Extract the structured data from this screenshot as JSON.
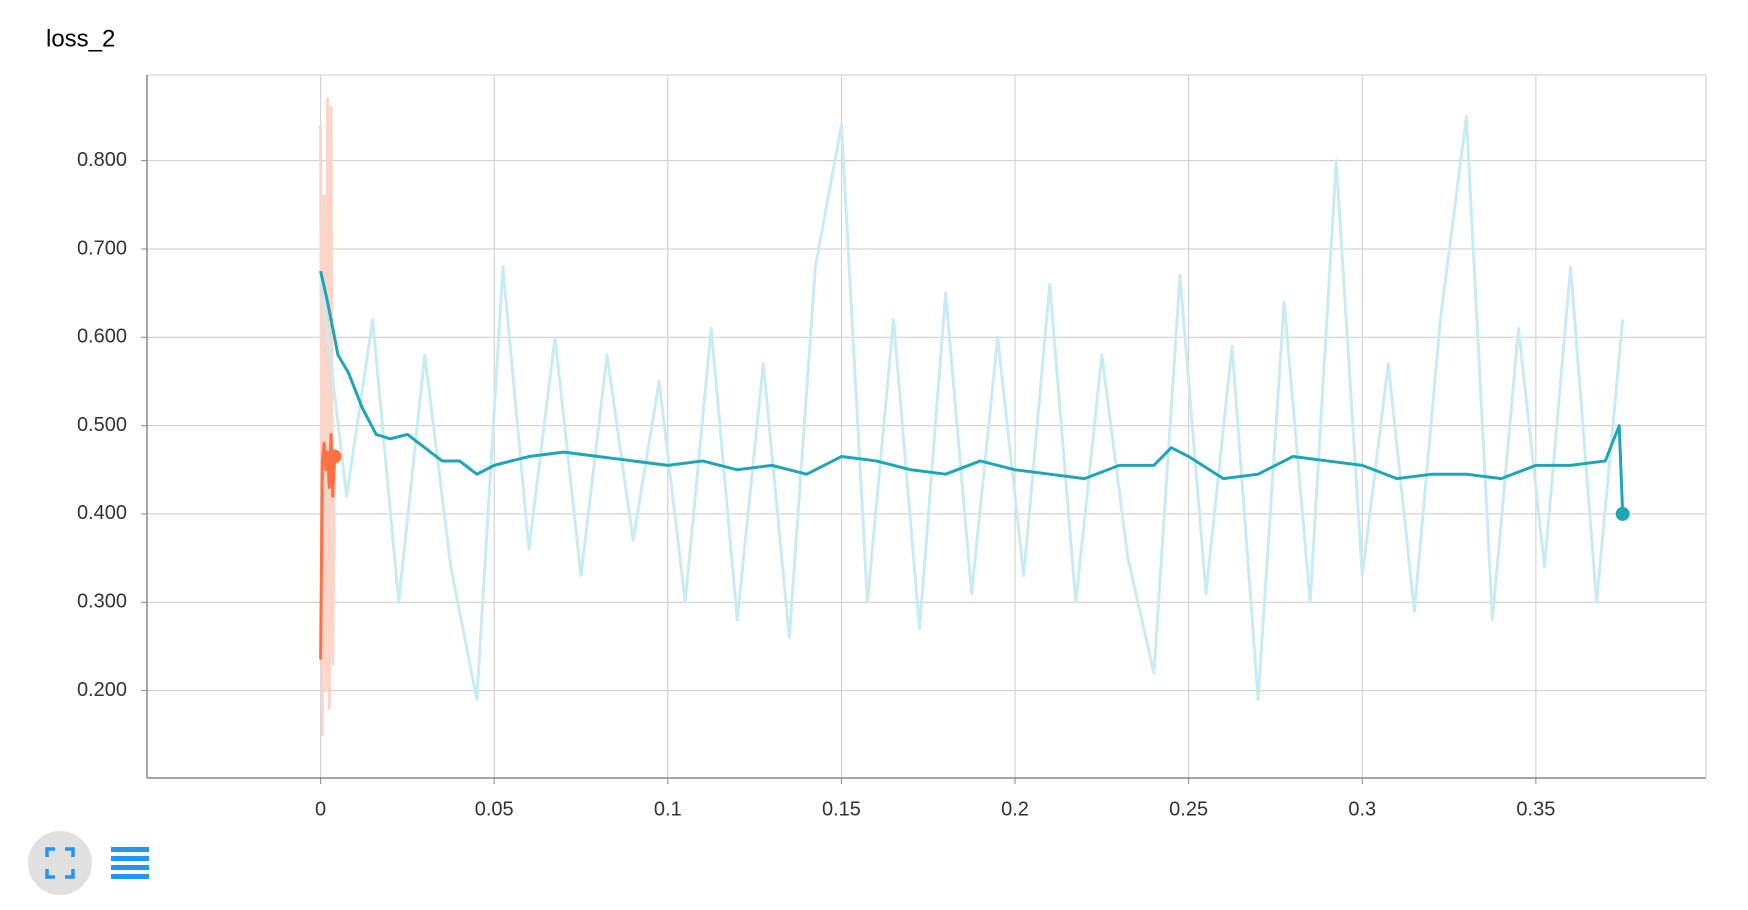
{
  "chart_data": {
    "type": "line",
    "title": "loss_2",
    "xlim": [
      -0.05,
      0.399
    ],
    "ylim": [
      0.101,
      0.897
    ],
    "xticks": [
      0,
      0.05,
      0.1,
      0.15,
      0.2,
      0.25,
      0.3,
      0.35
    ],
    "yticks": [
      {
        "value": 0.2,
        "label": "0.200"
      },
      {
        "value": 0.3,
        "label": "0.300"
      },
      {
        "value": 0.4,
        "label": "0.400"
      },
      {
        "value": 0.5,
        "label": "0.500"
      },
      {
        "value": 0.6,
        "label": "0.600"
      },
      {
        "value": 0.7,
        "label": "0.700"
      },
      {
        "value": 0.8,
        "label": "0.800"
      }
    ],
    "grid": true,
    "series": [
      {
        "color": "#fbd5c8",
        "x": [
          0,
          0.0005,
          0.001,
          0.0015,
          0.002,
          0.0025,
          0.003,
          0.0035,
          0.004
        ],
        "values": [
          0.84,
          0.15,
          0.76,
          0.2,
          0.87,
          0.18,
          0.86,
          0.23,
          0.47
        ]
      },
      {
        "color": "#c9ecf1",
        "x": [
          0,
          0.0075,
          0.015,
          0.0225,
          0.03,
          0.0375,
          0.045,
          0.0525,
          0.06,
          0.0675,
          0.075,
          0.0825,
          0.09,
          0.0975,
          0.105,
          0.1125,
          0.12,
          0.1275,
          0.135,
          0.1425,
          0.15,
          0.1575,
          0.165,
          0.1725,
          0.18,
          0.1875,
          0.195,
          0.2025,
          0.21,
          0.2175,
          0.225,
          0.2325,
          0.24,
          0.2475,
          0.255,
          0.2625,
          0.27,
          0.2775,
          0.285,
          0.2925,
          0.3,
          0.3075,
          0.315,
          0.3225,
          0.33,
          0.3375,
          0.345,
          0.3525,
          0.36,
          0.3675,
          0.375
        ],
        "values": [
          0.67,
          0.42,
          0.62,
          0.3,
          0.58,
          0.34,
          0.19,
          0.68,
          0.36,
          0.6,
          0.33,
          0.58,
          0.37,
          0.55,
          0.3,
          0.61,
          0.28,
          0.57,
          0.26,
          0.68,
          0.84,
          0.3,
          0.62,
          0.27,
          0.65,
          0.31,
          0.6,
          0.33,
          0.66,
          0.3,
          0.58,
          0.35,
          0.22,
          0.67,
          0.31,
          0.59,
          0.19,
          0.64,
          0.3,
          0.8,
          0.33,
          0.57,
          0.29,
          0.62,
          0.85,
          0.28,
          0.61,
          0.34,
          0.68,
          0.3,
          0.62
        ]
      },
      {
        "color": "#1ea6b8",
        "end_marker": true,
        "x": [
          0,
          0.002,
          0.005,
          0.008,
          0.012,
          0.016,
          0.02,
          0.025,
          0.03,
          0.035,
          0.04,
          0.045,
          0.05,
          0.06,
          0.07,
          0.08,
          0.09,
          0.1,
          0.11,
          0.12,
          0.13,
          0.14,
          0.15,
          0.16,
          0.17,
          0.18,
          0.19,
          0.2,
          0.21,
          0.22,
          0.23,
          0.24,
          0.245,
          0.25,
          0.26,
          0.27,
          0.28,
          0.29,
          0.3,
          0.31,
          0.32,
          0.33,
          0.34,
          0.35,
          0.36,
          0.37,
          0.374,
          0.375
        ],
        "values": [
          0.675,
          0.64,
          0.58,
          0.56,
          0.52,
          0.49,
          0.485,
          0.49,
          0.475,
          0.46,
          0.46,
          0.445,
          0.455,
          0.465,
          0.47,
          0.465,
          0.46,
          0.455,
          0.46,
          0.45,
          0.455,
          0.445,
          0.465,
          0.46,
          0.45,
          0.445,
          0.46,
          0.45,
          0.445,
          0.44,
          0.455,
          0.455,
          0.475,
          0.465,
          0.44,
          0.445,
          0.465,
          0.46,
          0.455,
          0.44,
          0.445,
          0.445,
          0.44,
          0.455,
          0.455,
          0.46,
          0.5,
          0.4
        ]
      },
      {
        "color": "#ff7043",
        "end_marker": true,
        "x": [
          0,
          0.0005,
          0.001,
          0.0015,
          0.002,
          0.0025,
          0.003,
          0.0035,
          0.004
        ],
        "values": [
          0.235,
          0.46,
          0.48,
          0.45,
          0.47,
          0.43,
          0.49,
          0.42,
          0.465
        ]
      }
    ]
  }
}
